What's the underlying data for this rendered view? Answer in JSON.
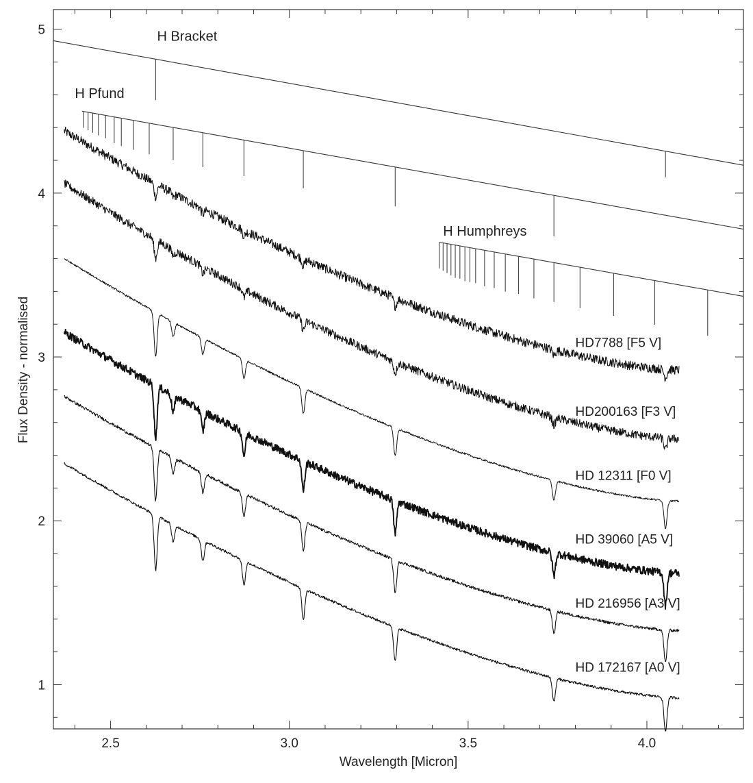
{
  "chart_data": {
    "type": "line",
    "title": "",
    "xlabel": "Wavelength [Micron]",
    "ylabel": "Flux Density - normalised",
    "xlim": [
      2.34,
      4.27
    ],
    "ylim": [
      0.73,
      5.12
    ],
    "x_ticks": [
      2.5,
      3.0,
      3.5,
      4.0
    ],
    "x_tick_labels": [
      "2.5",
      "3.0",
      "3.5",
      "4.0"
    ],
    "y_ticks": [
      1,
      2,
      3,
      4,
      5
    ],
    "y_tick_labels": [
      "1",
      "2",
      "3",
      "4",
      "5"
    ],
    "grid": false,
    "x_range": [
      2.37,
      4.09
    ],
    "absorption_lines": [
      {
        "x": 2.626,
        "depth": 0.32
      },
      {
        "x": 2.675,
        "depth": 0.1
      },
      {
        "x": 2.758,
        "depth": 0.12
      },
      {
        "x": 2.873,
        "depth": 0.14
      },
      {
        "x": 3.039,
        "depth": 0.18
      },
      {
        "x": 3.296,
        "depth": 0.2
      },
      {
        "x": 3.74,
        "depth": 0.14
      },
      {
        "x": 4.052,
        "depth": 0.2
      }
    ],
    "series": [
      {
        "name": "HD7788 [F5 V]",
        "label": "HD7788 [F5 V]",
        "label_x": 3.8,
        "label_y": 3.06,
        "start": 4.38,
        "end": 2.92,
        "noise": 0.028,
        "line_scale": 0.25,
        "weight": 1.1
      },
      {
        "name": "HD200163 [F3 V]",
        "label": "HD200163 [F3 V]",
        "label_x": 3.8,
        "label_y": 2.64,
        "start": 4.06,
        "end": 2.5,
        "noise": 0.026,
        "line_scale": 0.35,
        "weight": 1.1
      },
      {
        "name": "HD 12311 [F0 V]",
        "label": "HD 12311 [F0 V]",
        "label_x": 3.8,
        "label_y": 2.25,
        "start": 3.6,
        "end": 2.12,
        "noise": 0.006,
        "line_scale": 0.85,
        "weight": 1.0
      },
      {
        "name": "HD 39060 [A5 V]",
        "label": "HD 39060 [A5 V]",
        "label_x": 3.8,
        "label_y": 1.86,
        "start": 3.15,
        "end": 1.68,
        "noise": 0.024,
        "line_scale": 1.0,
        "weight": 1.9
      },
      {
        "name": "HD 216956 [A3 V]",
        "label": "HD 216956 [A3 V]",
        "label_x": 3.8,
        "label_y": 1.47,
        "start": 2.76,
        "end": 1.33,
        "noise": 0.009,
        "line_scale": 1.0,
        "weight": 1.1
      },
      {
        "name": "HD 172167 [A0 V]",
        "label": "HD 172167 [A0 V]",
        "label_x": 3.8,
        "label_y": 1.08,
        "start": 2.35,
        "end": 0.92,
        "noise": 0.008,
        "line_scale": 1.05,
        "weight": 1.1
      }
    ],
    "line_series": {
      "bracket": {
        "label": "H Bracket",
        "label_x": 2.63,
        "label_y": 4.93,
        "x": [
          2.34,
          4.27
        ],
        "y": [
          4.93,
          4.17
        ],
        "ticks": [
          {
            "x": 2.626,
            "len": 0.25
          },
          {
            "x": 4.052,
            "len": 0.16
          }
        ]
      },
      "pfund": {
        "label": "H Pfund",
        "label_x": 2.4,
        "label_y": 4.58,
        "x": [
          2.42,
          4.27
        ],
        "y": [
          4.5,
          3.78
        ],
        "ticks": [
          {
            "x": 2.424,
            "len": 0.1
          },
          {
            "x": 2.437,
            "len": 0.11
          },
          {
            "x": 2.45,
            "len": 0.12
          },
          {
            "x": 2.466,
            "len": 0.13
          },
          {
            "x": 2.486,
            "len": 0.14
          },
          {
            "x": 2.51,
            "len": 0.16
          },
          {
            "x": 2.53,
            "len": 0.17
          },
          {
            "x": 2.564,
            "len": 0.18
          },
          {
            "x": 2.608,
            "len": 0.19
          },
          {
            "x": 2.675,
            "len": 0.2
          },
          {
            "x": 2.758,
            "len": 0.21
          },
          {
            "x": 2.873,
            "len": 0.22
          },
          {
            "x": 3.039,
            "len": 0.23
          },
          {
            "x": 3.296,
            "len": 0.24
          },
          {
            "x": 3.74,
            "len": 0.25
          }
        ]
      },
      "humphreys": {
        "label": "H Humphreys",
        "label_x": 3.43,
        "label_y": 3.74,
        "x": [
          3.42,
          4.27
        ],
        "y": [
          3.7,
          3.37
        ],
        "ticks": [
          {
            "x": 3.419,
            "len": 0.16
          },
          {
            "x": 3.43,
            "len": 0.17
          },
          {
            "x": 3.441,
            "len": 0.18
          },
          {
            "x": 3.452,
            "len": 0.19
          },
          {
            "x": 3.464,
            "len": 0.2
          },
          {
            "x": 3.477,
            "len": 0.2
          },
          {
            "x": 3.491,
            "len": 0.21
          },
          {
            "x": 3.505,
            "len": 0.21
          },
          {
            "x": 3.521,
            "len": 0.21
          },
          {
            "x": 3.546,
            "len": 0.22
          },
          {
            "x": 3.573,
            "len": 0.22
          },
          {
            "x": 3.604,
            "len": 0.23
          },
          {
            "x": 3.641,
            "len": 0.23
          },
          {
            "x": 3.684,
            "len": 0.24
          },
          {
            "x": 3.74,
            "len": 0.24
          },
          {
            "x": 3.813,
            "len": 0.25
          },
          {
            "x": 3.907,
            "len": 0.26
          },
          {
            "x": 4.022,
            "len": 0.27
          },
          {
            "x": 4.17,
            "len": 0.28
          }
        ]
      }
    }
  }
}
